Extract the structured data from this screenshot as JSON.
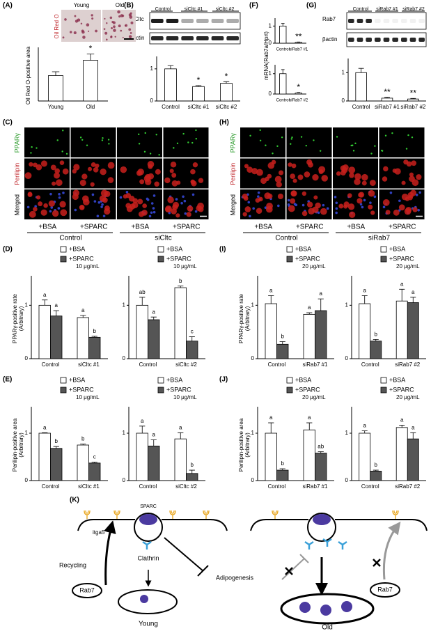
{
  "panels": [
    "(A)",
    "(B)",
    "(C)",
    "(D)",
    "(E)",
    "(F)",
    "(G)",
    "(H)",
    "(I)",
    "(J)",
    "(K)"
  ],
  "panel_a": {
    "stain": "Oil Red O",
    "images": [
      "Young",
      "Old"
    ]
  },
  "blot_b": {
    "lanes": [
      "Control",
      "siCltc #1",
      "siCltc #2"
    ],
    "bands": [
      "Cltc",
      "βactin"
    ]
  },
  "blot_g": {
    "lanes": [
      "Control",
      "siRab7 #1",
      "siRab7 #2"
    ],
    "bands": [
      "Rab7",
      "βactin"
    ]
  },
  "panel_c": {
    "rows": [
      "PPARγ",
      "Perilipin",
      "Merged"
    ],
    "conditions": [
      "+BSA",
      "+SPARC",
      "+BSA",
      "+SPARC"
    ],
    "groups": [
      "Control",
      "siCltc"
    ]
  },
  "panel_h": {
    "rows": [
      "PPARγ",
      "Perilipin",
      "Merged"
    ],
    "conditions": [
      "+BSA",
      "+SPARC",
      "+BSA",
      "+SPARC"
    ],
    "groups": [
      "Control",
      "siRab7"
    ]
  },
  "diagram_k": {
    "ligand": "SPARC",
    "receptor": "itga5",
    "recycling": "Recycling",
    "young_rab7": "Rab7",
    "clathrin": "Clathrin",
    "adipogenesis": "Adipogenesis",
    "young": "Young",
    "old_rab7": "Rab7",
    "old": "Old"
  },
  "chart_data": [
    {
      "type": "bar",
      "ylabel": [
        "Oil Red O-positive area"
      ],
      "categories": [
        "Young",
        "Old"
      ],
      "series": [
        {
          "color": "#ffffff",
          "values": [
            1.0,
            1.6
          ],
          "errors": [
            0.15,
            0.25
          ],
          "labels": [
            null,
            "*"
          ]
        }
      ],
      "ylim": [
        0,
        2
      ]
    },
    {
      "type": "bar",
      "categories": [
        "Control",
        "siCltc #1",
        "siCltc #2"
      ],
      "series": [
        {
          "color": "#ffffff",
          "values": [
            1.0,
            0.45,
            0.55
          ],
          "errors": [
            0.1,
            0.03,
            0.05
          ],
          "labels": [
            null,
            "*",
            "*"
          ]
        }
      ],
      "ylim": [
        0,
        1.3
      ],
      "yticks": [
        0,
        1
      ]
    },
    {
      "type": "bar",
      "ylabel": [
        "mRNA(Rab7a/Hprt)"
      ],
      "categories": [
        "Control",
        "siRab7 #1"
      ],
      "series": [
        {
          "color": "#ffffff",
          "values": [
            1.0,
            0.05
          ],
          "errors": [
            0.15,
            0.02
          ],
          "labels": [
            null,
            "**"
          ]
        }
      ],
      "ylim": [
        0,
        1.3
      ],
      "yticks": [
        0,
        1
      ]
    },
    {
      "type": "bar",
      "categories": [
        "Control",
        "siRab7 #2"
      ],
      "series": [
        {
          "color": "#ffffff",
          "values": [
            1.0,
            0.05
          ],
          "errors": [
            0.2,
            0.02
          ],
          "labels": [
            null,
            "*"
          ]
        }
      ],
      "ylim": [
        0,
        1.3
      ],
      "yticks": [
        0,
        1
      ]
    },
    {
      "type": "bar",
      "categories": [
        "Control",
        "siRab7 #1",
        "siRab7 #2"
      ],
      "series": [
        {
          "color": "#ffffff",
          "values": [
            1.0,
            0.1,
            0.07
          ],
          "errors": [
            0.15,
            0.03,
            0.02
          ],
          "labels": [
            null,
            "**",
            "**"
          ]
        }
      ],
      "ylim": [
        0,
        1.4
      ],
      "yticks": [
        0,
        1
      ]
    },
    {
      "type": "bar",
      "ylabel": [
        "PPARγ-positive rate",
        "(Arbitrary)"
      ],
      "categories": [
        "Control",
        "siCltc #1"
      ],
      "legend_note": "10 μg/mL",
      "series": [
        {
          "name": "+BSA",
          "color": "#ffffff",
          "values": [
            1.0,
            0.77
          ],
          "errors": [
            0.1,
            0.04
          ],
          "labels": [
            "a",
            "a"
          ]
        },
        {
          "name": "+SPARC",
          "color": "#555555",
          "values": [
            0.8,
            0.4
          ],
          "errors": [
            0.1,
            0.02
          ],
          "labels": [
            "a",
            "b"
          ]
        }
      ],
      "ylim": [
        0,
        1.5
      ],
      "yticks": [
        0,
        1
      ]
    },
    {
      "type": "bar",
      "categories": [
        "Control",
        "siCltc #2"
      ],
      "legend_note": "10 μg/mL",
      "series": [
        {
          "name": "+BSA",
          "color": "#ffffff",
          "values": [
            1.0,
            1.33
          ],
          "errors": [
            0.15,
            0.03
          ],
          "labels": [
            "ab",
            "b"
          ]
        },
        {
          "name": "+SPARC",
          "color": "#555555",
          "values": [
            0.73,
            0.33
          ],
          "errors": [
            0.05,
            0.08
          ],
          "labels": [
            "a",
            "c"
          ]
        }
      ],
      "ylim": [
        0,
        1.5
      ],
      "yticks": [
        0,
        1
      ]
    },
    {
      "type": "bar",
      "ylabel": [
        "PPARγ-positive rate",
        "(Arbitrary)"
      ],
      "categories": [
        "Control",
        "siRab7 #1"
      ],
      "legend_note": "20 μg/mL",
      "series": [
        {
          "name": "+BSA",
          "color": "#ffffff",
          "values": [
            1.03,
            0.83
          ],
          "errors": [
            0.15,
            0.03
          ],
          "labels": [
            "a",
            "a"
          ]
        },
        {
          "name": "+SPARC",
          "color": "#555555",
          "values": [
            0.27,
            0.9
          ],
          "errors": [
            0.05,
            0.22
          ],
          "labels": [
            "b",
            "a"
          ]
        }
      ],
      "ylim": [
        0,
        1.5
      ],
      "yticks": [
        0,
        1
      ]
    },
    {
      "type": "bar",
      "categories": [
        "Control",
        "siRab7 #2"
      ],
      "legend_note": "20 μg/mL",
      "series": [
        {
          "name": "+BSA",
          "color": "#ffffff",
          "values": [
            1.03,
            1.08
          ],
          "errors": [
            0.15,
            0.22
          ],
          "labels": [
            "a",
            "a"
          ]
        },
        {
          "name": "+SPARC",
          "color": "#555555",
          "values": [
            0.33,
            1.05
          ],
          "errors": [
            0.03,
            0.1
          ],
          "labels": [
            "b",
            "a"
          ]
        }
      ],
      "ylim": [
        0,
        1.5
      ],
      "yticks": [
        0,
        1
      ]
    },
    {
      "type": "bar",
      "ylabel": [
        "Perilipin-positive area",
        "(Arbitrary)"
      ],
      "categories": [
        "Control",
        "siCltc #1"
      ],
      "legend_note": "10 μg/mL",
      "series": [
        {
          "name": "+BSA",
          "color": "#ffffff",
          "values": [
            1.0,
            0.75
          ],
          "errors": [
            0.01,
            0.02
          ],
          "labels": [
            "a",
            "b"
          ]
        },
        {
          "name": "+SPARC",
          "color": "#555555",
          "values": [
            0.68,
            0.37
          ],
          "errors": [
            0.04,
            0.02
          ],
          "labels": [
            "b",
            "c"
          ]
        }
      ],
      "ylim": [
        0,
        1.5
      ],
      "yticks": [
        0,
        1
      ]
    },
    {
      "type": "bar",
      "categories": [
        "Control",
        "siCltc #2"
      ],
      "legend_note": "10 μg/mL",
      "series": [
        {
          "name": "+BSA",
          "color": "#ffffff",
          "values": [
            1.0,
            0.88
          ],
          "errors": [
            0.15,
            0.13
          ],
          "labels": [
            "a",
            "a"
          ]
        },
        {
          "name": "+SPARC",
          "color": "#555555",
          "values": [
            0.73,
            0.15
          ],
          "errors": [
            0.13,
            0.07
          ],
          "labels": [
            "a",
            "b"
          ]
        }
      ],
      "ylim": [
        0,
        1.5
      ],
      "yticks": [
        0,
        1
      ]
    },
    {
      "type": "bar",
      "ylabel": [
        "Perilipin-positive area",
        "(Arbitrary)"
      ],
      "categories": [
        "Control",
        "siRab7 #1"
      ],
      "legend_note": "20 μg/mL",
      "series": [
        {
          "name": "+BSA",
          "color": "#ffffff",
          "values": [
            1.0,
            1.07
          ],
          "errors": [
            0.22,
            0.15
          ],
          "labels": [
            "a",
            "a"
          ]
        },
        {
          "name": "+SPARC",
          "color": "#555555",
          "values": [
            0.22,
            0.58
          ],
          "errors": [
            0.03,
            0.03
          ],
          "labels": [
            "b",
            "ab"
          ]
        }
      ],
      "ylim": [
        0,
        1.5
      ],
      "yticks": [
        0,
        1
      ]
    },
    {
      "type": "bar",
      "categories": [
        "Control",
        "siRab7 #2"
      ],
      "legend_note": "20 μg/mL",
      "series": [
        {
          "name": "+BSA",
          "color": "#ffffff",
          "values": [
            1.0,
            1.12
          ],
          "errors": [
            0.05,
            0.05
          ],
          "labels": [
            "a",
            "a"
          ]
        },
        {
          "name": "+SPARC",
          "color": "#555555",
          "values": [
            0.2,
            0.88
          ],
          "errors": [
            0.02,
            0.13
          ],
          "labels": [
            "b",
            "a"
          ]
        }
      ],
      "ylim": [
        0,
        1.5
      ],
      "yticks": [
        0,
        1
      ]
    }
  ]
}
